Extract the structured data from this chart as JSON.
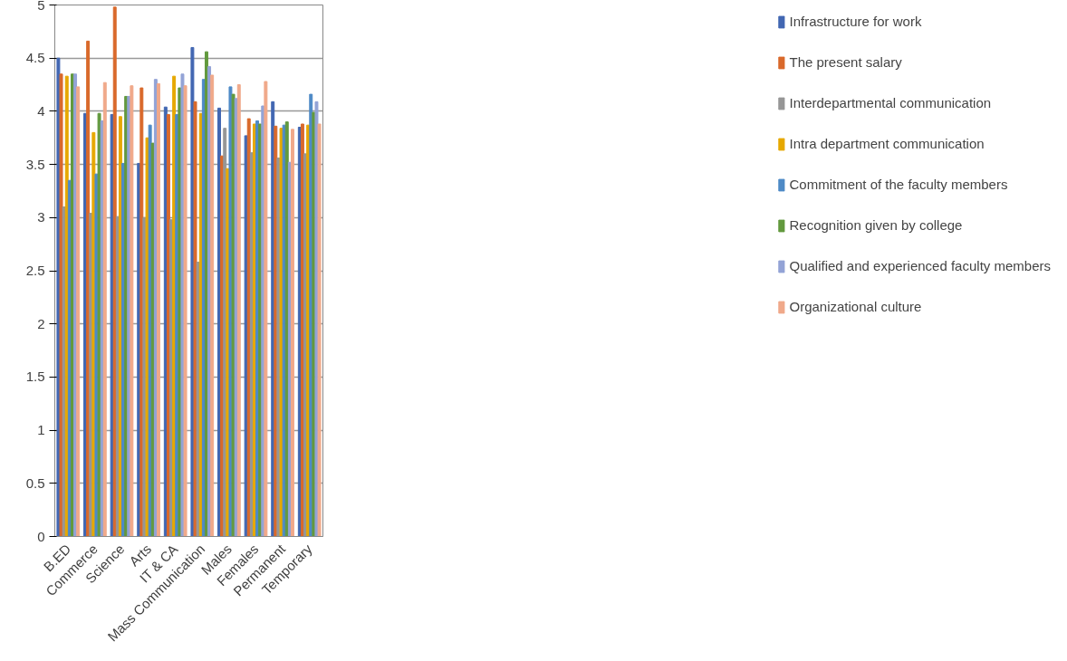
{
  "chart_data": {
    "type": "bar",
    "categories": [
      "B.ED",
      "Commerce",
      "Science",
      "Arts",
      "IT & CA",
      "Mass Communication",
      "Males",
      "Females",
      "Permanent",
      "Temporary"
    ],
    "series": [
      {
        "name": "Infrastructure for work",
        "color": "#4267b2",
        "values": [
          4.5,
          3.98,
          3.97,
          3.51,
          4.04,
          4.6,
          4.03,
          3.77,
          4.09,
          3.85
        ]
      },
      {
        "name": "The present salary",
        "color": "#d9692b",
        "values": [
          4.35,
          4.66,
          4.98,
          4.22,
          3.97,
          4.09,
          3.58,
          3.93,
          3.86,
          3.88
        ]
      },
      {
        "name": "Interdepartmental communication",
        "color": "#969696",
        "values": [
          3.1,
          3.04,
          3.01,
          3.0,
          2.98,
          2.58,
          3.84,
          3.61,
          3.56,
          3.6
        ]
      },
      {
        "name": "Intra department communication",
        "color": "#e6a800",
        "values": [
          4.33,
          3.8,
          3.95,
          3.75,
          4.33,
          3.98,
          3.46,
          3.88,
          3.84,
          3.87
        ]
      },
      {
        "name": "Commitment of the faculty members",
        "color": "#4e8ac6",
        "values": [
          3.35,
          3.41,
          3.51,
          3.87,
          3.97,
          4.3,
          4.23,
          3.91,
          3.87,
          4.16
        ]
      },
      {
        "name": "Recognition given by college",
        "color": "#62993e",
        "values": [
          4.35,
          3.98,
          4.14,
          3.7,
          4.22,
          4.56,
          4.16,
          3.88,
          3.9,
          3.99
        ]
      },
      {
        "name": "Qualified and experienced faculty members",
        "color": "#93a3d6",
        "values": [
          4.35,
          3.91,
          4.14,
          4.3,
          4.35,
          4.42,
          4.12,
          4.05,
          3.52,
          4.09
        ]
      },
      {
        "name": "Organizational culture",
        "color": "#f0a98a",
        "values": [
          4.23,
          4.27,
          4.24,
          4.26,
          4.24,
          4.34,
          4.25,
          4.28,
          3.83,
          3.88
        ]
      }
    ],
    "ylim": [
      0,
      5
    ],
    "yticks": [
      0,
      0.5,
      1,
      1.5,
      2,
      2.5,
      3,
      3.5,
      4,
      4.5,
      5
    ],
    "grid": "y",
    "legend": "right"
  }
}
